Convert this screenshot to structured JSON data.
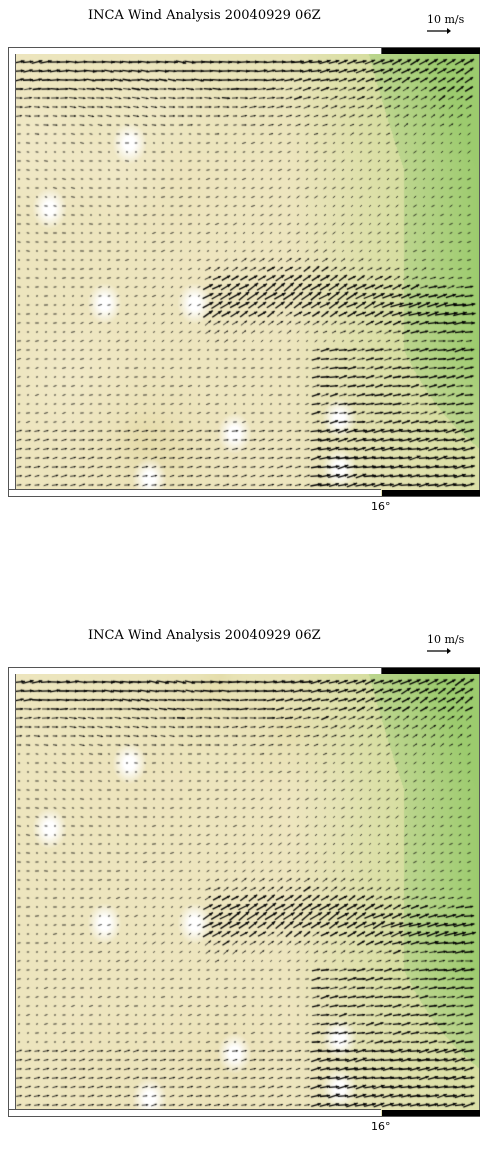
{
  "panels": [
    {
      "title": "INCA Wind Analysis 20040929 06Z",
      "scale_label": "10 m/s",
      "lon_label": "16°",
      "seed": 11
    },
    {
      "title": "INCA Wind Analysis 20040929 06Z",
      "scale_label": "10 m/s",
      "lon_label": "16°",
      "seed": 29
    }
  ],
  "colors": {
    "light_terrain": "#f3eccf",
    "mid_terrain": "#e6dca9",
    "dark_terrain": "#d8cb8a",
    "peak": "#ffffff",
    "lowland_light": "#c7d98c",
    "lowland": "#9ccb6e",
    "arrow": "#000000"
  },
  "icons": {
    "scale_arrow": "right-arrow-icon"
  }
}
